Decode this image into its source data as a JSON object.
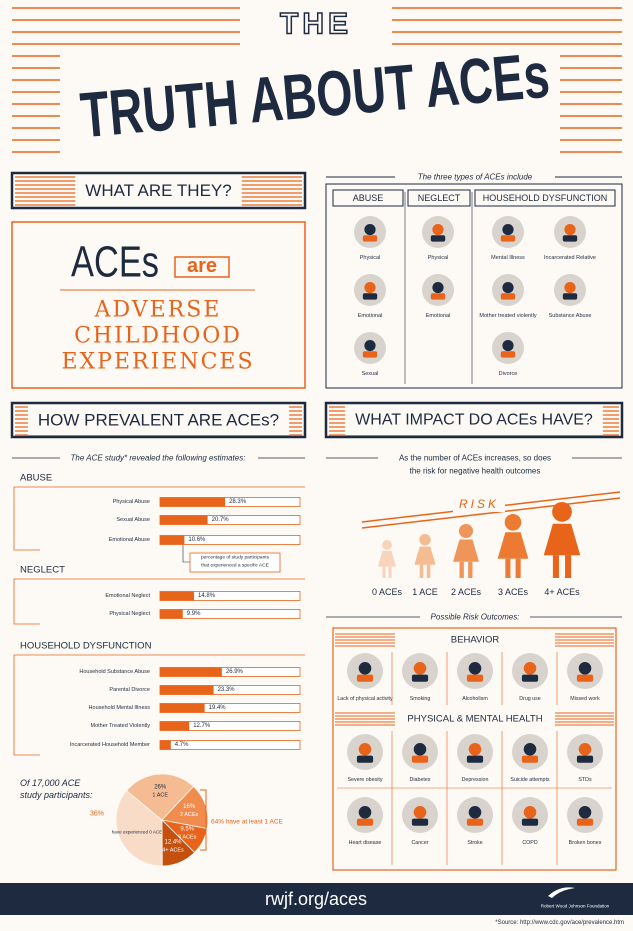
{
  "header": {
    "title_top": "THE",
    "title_main": "TRUTH ABOUT ACEs"
  },
  "what": {
    "heading": "WHAT ARE THEY?",
    "aces": "ACEs",
    "are": "are",
    "lines": [
      "ADVERSE",
      "CHILDHOOD",
      "EXPERIENCES"
    ]
  },
  "types": {
    "intro": "The three types of ACEs include",
    "columns": [
      {
        "heading": "ABUSE",
        "items": [
          "Physical",
          "Emotional",
          "Sexual"
        ]
      },
      {
        "heading": "NEGLECT",
        "items": [
          "Physical",
          "Emotional"
        ]
      },
      {
        "heading": "HOUSEHOLD DYSFUNCTION",
        "items": [
          "Mental Illness",
          "Incarcerated Relative",
          "Mother treated violently",
          "Substance Abuse",
          "Divorce"
        ]
      }
    ]
  },
  "prevalence": {
    "heading": "HOW PREVALENT ARE ACEs?",
    "intro": "The ACE study* revealed the following estimates:",
    "groups": [
      {
        "name": "ABUSE",
        "categories": [
          "Physical Abuse",
          "Sexual Abuse",
          "Emotional Abuse"
        ],
        "values": [
          28.3,
          20.7,
          10.6
        ],
        "value_labels": [
          "28.3%",
          "20.7%",
          "10.6%"
        ]
      },
      {
        "name": "NEGLECT",
        "categories": [
          "Emotional Neglect",
          "Physical Neglect"
        ],
        "values": [
          14.8,
          9.9
        ],
        "value_labels": [
          "14.8%",
          "9.9%"
        ]
      },
      {
        "name": "HOUSEHOLD DYSFUNCTION",
        "categories": [
          "Household Substance Abuse",
          "Parental Divorce",
          "Household Mental Illness",
          "Mother Treated Violently",
          "Incarcerated Household Member"
        ],
        "values": [
          26.9,
          23.3,
          19.4,
          12.7,
          4.7
        ],
        "value_labels": [
          "26.9%",
          "23.3%",
          "19.4%",
          "12.7%",
          "4.7%"
        ]
      }
    ],
    "note": [
      "percentage of study participants",
      "that experienced a specific ACE"
    ],
    "pie": {
      "intro": [
        "Of 17,000 ACE",
        "study participants:"
      ],
      "names": [
        "have experienced 0 ACEs",
        "1 ACE",
        "2 ACEs",
        "3 ACEs",
        "4+ ACEs"
      ],
      "values": [
        36,
        26,
        16,
        9.5,
        12.4
      ],
      "value_labels": [
        "36%",
        "26%",
        "16%",
        "9.5%",
        "12.4%"
      ],
      "colors": [
        "#f9dcc8",
        "#f5bb92",
        "#f08c4e",
        "#e8641b",
        "#c4500f"
      ],
      "callout": "64% have at least 1 ACE"
    }
  },
  "impact": {
    "heading": "WHAT IMPACT DO ACEs HAVE?",
    "intro": [
      "As the number of ACEs increases, so does",
      "the risk for negative health outcomes"
    ],
    "risk": "RISK",
    "figures": [
      "0 ACEs",
      "1 ACE",
      "2 ACEs",
      "3 ACEs",
      "4+ ACEs"
    ],
    "outcomes_title": "Possible Risk Outcomes:",
    "sections": [
      {
        "heading": "BEHAVIOR",
        "items": [
          "Lack of physical activity",
          "Smoking",
          "Alcoholism",
          "Drug use",
          "Missed work"
        ]
      },
      {
        "heading": "PHYSICAL & MENTAL HEALTH",
        "items": [
          "Severe obesity",
          "Diabetes",
          "Depression",
          "Suicide attempts",
          "STDs",
          "Heart disease",
          "Cancer",
          "Stroke",
          "COPD",
          "Broken bones"
        ]
      }
    ]
  },
  "footer": {
    "url": "rwjf.org/aces",
    "org": "Robert Wood Johnson Foundation",
    "source": "*Source: http://www.cdc.gov/ace/prevalence.htm"
  }
}
